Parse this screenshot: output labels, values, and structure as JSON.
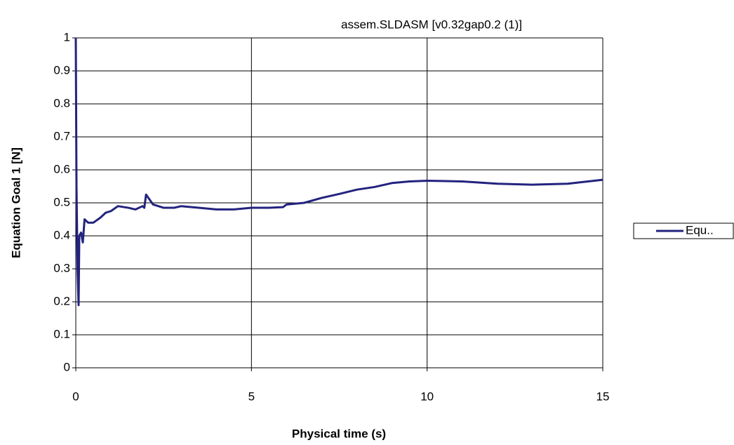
{
  "chart_data": {
    "type": "line",
    "title": "assem.SLDASM [v0.32gap0.2 (1)]",
    "x_label": "Physical time (s)",
    "y_label": "Equation Goal 1  [N]",
    "x": [
      0,
      0.02,
      0.05,
      0.08,
      0.1,
      0.15,
      0.2,
      0.25,
      0.35,
      0.5,
      0.7,
      0.85,
      1.0,
      1.2,
      1.5,
      1.7,
      1.9,
      1.95,
      2.0,
      2.1,
      2.2,
      2.5,
      2.8,
      3.0,
      3.5,
      4.0,
      4.5,
      5.0,
      5.5,
      5.9,
      6.0,
      6.5,
      7.0,
      7.5,
      8.0,
      8.5,
      9.0,
      9.5,
      10.0,
      11,
      12,
      13,
      14,
      15
    ],
    "series": [
      {
        "name": "Equ..",
        "color": "#23237f",
        "values": [
          1,
          0.55,
          0.3,
          0.19,
          0.4,
          0.41,
          0.38,
          0.45,
          0.44,
          0.44,
          0.455,
          0.47,
          0.475,
          0.49,
          0.485,
          0.48,
          0.49,
          0.485,
          0.525,
          0.51,
          0.495,
          0.485,
          0.485,
          0.49,
          0.485,
          0.48,
          0.48,
          0.485,
          0.485,
          0.487,
          0.495,
          0.5,
          0.515,
          0.527,
          0.54,
          0.548,
          0.56,
          0.565,
          0.567,
          0.565,
          0.558,
          0.555,
          0.558,
          0.57
        ]
      }
    ],
    "xlim": [
      0,
      15
    ],
    "xticks": [
      0,
      5,
      10,
      15
    ],
    "ylim": [
      0,
      1
    ],
    "yticks": [
      0,
      0.1,
      0.2,
      0.3,
      0.4,
      0.5,
      0.6,
      0.7,
      0.8,
      0.9,
      1
    ],
    "grid": true,
    "legend": "right"
  }
}
